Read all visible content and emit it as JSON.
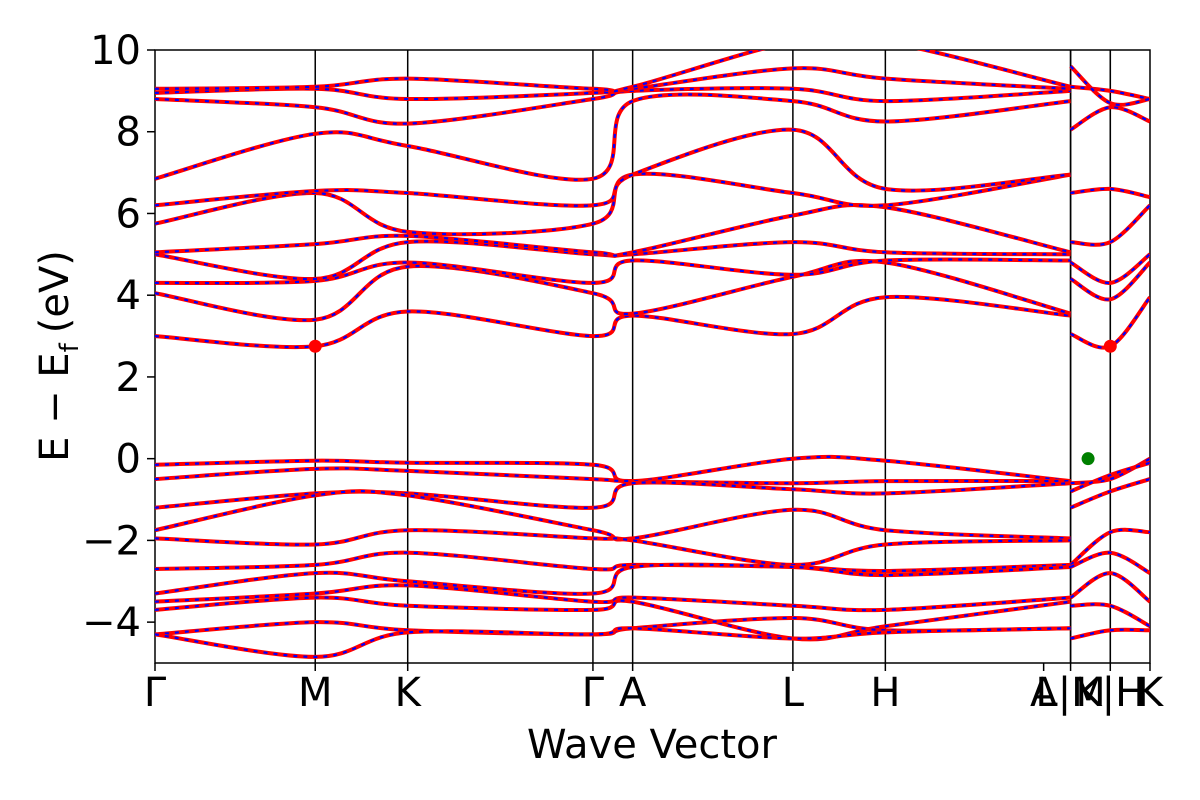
{
  "chart_data": {
    "type": "line",
    "title": "",
    "xlabel": "Wave Vector",
    "ylabel": "E − E_f (eV)",
    "ylabel_parts": {
      "main": "E − E",
      "sub": "f",
      "unit": "(eV)"
    },
    "ylim": [
      -5,
      10
    ],
    "yticks": [
      -4,
      -2,
      0,
      2,
      4,
      6,
      8,
      10
    ],
    "ytick_labels": [
      "−4",
      "−2",
      "0",
      "2",
      "4",
      "6",
      "8",
      "10"
    ],
    "grid": false,
    "legend": "none",
    "colors": {
      "bands_solid": "#ff0000",
      "bands_dashed": "#0000ff",
      "vbm_marker": "#008000",
      "cbm_marker": "#ff0000",
      "hsp_lines": "#000000"
    },
    "high_symmetry_points": [
      {
        "label": "Γ",
        "k": 0.0
      },
      {
        "label": "M",
        "k": 0.577
      },
      {
        "label": "K",
        "k": 0.91
      },
      {
        "label": "Γ",
        "k": 1.577
      },
      {
        "label": "A",
        "k": 1.72
      },
      {
        "label": "L",
        "k": 2.297
      },
      {
        "label": "H",
        "k": 2.63
      },
      {
        "label": "A",
        "k": 3.297
      },
      {
        "label": "L|M",
        "k": 3.297
      },
      {
        "label": "K|H",
        "k": 3.44
      },
      {
        "label": "K",
        "k": 3.44
      },
      {
        "label": "H",
        "k": 3.583
      }
    ],
    "series": [
      {
        "k": [
          0,
          0.577,
          0.91,
          1.577,
          1.72,
          2.297,
          2.63,
          3.297
        ],
        "e": [
          -0.15,
          -0.05,
          -0.1,
          -0.15,
          -0.55,
          0.0,
          -0.05,
          -0.55
        ]
      },
      {
        "k": [
          0,
          0.577,
          0.91,
          1.577,
          1.72,
          2.297,
          2.63,
          3.297
        ],
        "e": [
          -0.5,
          -0.25,
          -0.3,
          -0.5,
          -0.55,
          -0.6,
          -0.55,
          -0.55
        ]
      },
      {
        "k": [
          0,
          0.577,
          0.91,
          1.577,
          1.72,
          2.297,
          2.63,
          3.297
        ],
        "e": [
          -1.2,
          -0.85,
          -0.85,
          -1.2,
          -0.6,
          -0.75,
          -0.85,
          -0.6
        ]
      },
      {
        "k": [
          0,
          0.577,
          0.91,
          1.577,
          1.72,
          2.297,
          2.63,
          3.297
        ],
        "e": [
          -1.75,
          -0.9,
          -0.9,
          -1.75,
          -1.95,
          -1.25,
          -1.75,
          -1.95
        ]
      },
      {
        "k": [
          0,
          0.577,
          0.91,
          1.577,
          1.72,
          2.297,
          2.63,
          3.297
        ],
        "e": [
          -1.95,
          -2.1,
          -1.75,
          -1.95,
          -2.0,
          -2.6,
          -2.1,
          -2.0
        ]
      },
      {
        "k": [
          0,
          0.577,
          0.91,
          1.577,
          1.72,
          2.297,
          2.63,
          3.297
        ],
        "e": [
          -2.7,
          -2.6,
          -2.3,
          -2.7,
          -2.6,
          -2.65,
          -2.75,
          -2.6
        ]
      },
      {
        "k": [
          0,
          0.577,
          0.91,
          1.577,
          1.72,
          2.297,
          2.63,
          3.297
        ],
        "e": [
          -3.3,
          -2.8,
          -3.0,
          -3.3,
          -2.65,
          -2.65,
          -2.85,
          -2.65
        ]
      },
      {
        "k": [
          0,
          0.577,
          0.91,
          1.577,
          1.72,
          2.297,
          2.63,
          3.297
        ],
        "e": [
          -3.5,
          -3.3,
          -3.1,
          -3.5,
          -3.4,
          -3.6,
          -3.7,
          -3.4
        ]
      },
      {
        "k": [
          0,
          0.577,
          0.91,
          1.577,
          1.72,
          2.297,
          2.63,
          3.297
        ],
        "e": [
          -3.7,
          -3.4,
          -3.6,
          -3.7,
          -3.5,
          -4.4,
          -4.1,
          -3.5
        ]
      },
      {
        "k": [
          0,
          0.577,
          0.91,
          1.577,
          1.72,
          2.297,
          2.63,
          3.297
        ],
        "e": [
          -4.3,
          -4.0,
          -4.2,
          -4.3,
          -4.15,
          -3.9,
          -4.2,
          -4.15
        ]
      },
      {
        "k": [
          0,
          0.577,
          0.91,
          1.577,
          1.72,
          2.297,
          2.63,
          3.297
        ],
        "e": [
          -4.3,
          -4.85,
          -4.25,
          -4.3,
          -4.15,
          -4.4,
          -4.25,
          -4.15
        ]
      },
      {
        "k": [
          0,
          0.577,
          0.91,
          1.577,
          1.72,
          2.297,
          2.63,
          3.297
        ],
        "e": [
          3.0,
          2.75,
          3.6,
          3.0,
          3.5,
          3.05,
          3.95,
          3.5
        ]
      },
      {
        "k": [
          0,
          0.577,
          0.91,
          1.577,
          1.72,
          2.297,
          2.63,
          3.297
        ],
        "e": [
          4.05,
          3.4,
          4.7,
          4.05,
          3.55,
          4.45,
          4.8,
          3.55
        ]
      },
      {
        "k": [
          0,
          0.577,
          0.91,
          1.577,
          1.72,
          2.297,
          2.63,
          3.297
        ],
        "e": [
          4.3,
          4.35,
          4.8,
          4.3,
          4.85,
          4.5,
          4.85,
          4.85
        ]
      },
      {
        "k": [
          0,
          0.577,
          0.91,
          1.577,
          1.72,
          2.297,
          2.63,
          3.297
        ],
        "e": [
          5.0,
          4.4,
          5.3,
          5.0,
          5.0,
          5.3,
          5.05,
          5.0
        ]
      },
      {
        "k": [
          0,
          0.577,
          0.91,
          1.577,
          1.72,
          2.297,
          2.63,
          3.297
        ],
        "e": [
          5.05,
          5.25,
          5.45,
          5.05,
          5.05,
          5.95,
          6.15,
          5.05
        ]
      },
      {
        "k": [
          0,
          0.577,
          0.91,
          1.577,
          1.72,
          2.297,
          2.63,
          3.297
        ],
        "e": [
          5.75,
          6.5,
          5.55,
          5.75,
          6.95,
          6.5,
          6.2,
          6.95
        ]
      },
      {
        "k": [
          0,
          0.577,
          0.91,
          1.577,
          1.72,
          2.297,
          2.63,
          3.297
        ],
        "e": [
          6.2,
          6.55,
          6.5,
          6.2,
          6.95,
          8.05,
          6.6,
          6.95
        ]
      },
      {
        "k": [
          0,
          0.577,
          0.91,
          1.577,
          1.72,
          2.297,
          2.63,
          3.297
        ],
        "e": [
          6.85,
          7.95,
          7.65,
          6.85,
          8.75,
          8.75,
          8.25,
          8.75
        ]
      },
      {
        "k": [
          0,
          0.577,
          0.91,
          1.577,
          1.72,
          2.297,
          2.63,
          3.297
        ],
        "e": [
          8.8,
          8.6,
          8.2,
          8.8,
          9.0,
          9.05,
          8.75,
          9.0
        ]
      },
      {
        "k": [
          0,
          0.577,
          0.91,
          1.577,
          1.72,
          2.297,
          2.63,
          3.297
        ],
        "e": [
          8.95,
          9.05,
          8.8,
          8.95,
          9.05,
          9.55,
          9.3,
          9.05
        ]
      },
      {
        "k": [
          0,
          0.577,
          0.91,
          1.577,
          1.72,
          2.297,
          2.63,
          3.297
        ],
        "e": [
          9.05,
          9.1,
          9.3,
          9.05,
          9.1,
          10.2,
          10.2,
          9.1
        ]
      }
    ],
    "segment_short": {
      "k_start": 3.297,
      "k_end": 3.583,
      "bands": [
        [
          -0.6,
          -0.5,
          -0.0
        ],
        [
          -0.8,
          -0.4,
          -0.1
        ],
        [
          -1.2,
          -0.8,
          -0.5
        ],
        [
          -2.6,
          -1.8,
          -1.8
        ],
        [
          -2.65,
          -2.3,
          -2.8
        ],
        [
          -3.4,
          -2.8,
          -3.5
        ],
        [
          -3.6,
          -3.6,
          -4.1
        ],
        [
          -4.4,
          -4.2,
          -4.2
        ],
        [
          3.05,
          2.75,
          3.95
        ],
        [
          4.4,
          3.9,
          4.8
        ],
        [
          4.8,
          4.3,
          5.0
        ],
        [
          5.3,
          5.3,
          6.2
        ],
        [
          6.5,
          6.6,
          6.4
        ],
        [
          8.05,
          8.6,
          8.25
        ],
        [
          9.1,
          9.0,
          8.8
        ],
        [
          9.6,
          8.7,
          8.8
        ]
      ]
    },
    "markers": [
      {
        "name": "VBM",
        "k": 3.36,
        "e": 0.0,
        "color": "#008000"
      },
      {
        "name": "CBM",
        "k": 0.577,
        "e": 2.75,
        "color": "#ff0000"
      },
      {
        "name": "CBM",
        "k": 3.44,
        "e": 2.75,
        "color": "#ff0000"
      }
    ],
    "xtick_labels": [
      {
        "text": "Γ",
        "k": 0.0
      },
      {
        "text": "M",
        "k": 0.577
      },
      {
        "text": "K",
        "k": 0.91
      },
      {
        "text": "Γ",
        "k": 1.577
      },
      {
        "text": "A",
        "k": 1.72
      },
      {
        "text": "L",
        "k": 2.297
      },
      {
        "text": "H",
        "k": 2.63
      },
      {
        "text": "A",
        "k": 3.2
      },
      {
        "text": "L|M",
        "k": 3.297
      },
      {
        "text": "K|H",
        "k": 3.44
      },
      {
        "text": "K",
        "k": 3.583
      }
    ]
  }
}
